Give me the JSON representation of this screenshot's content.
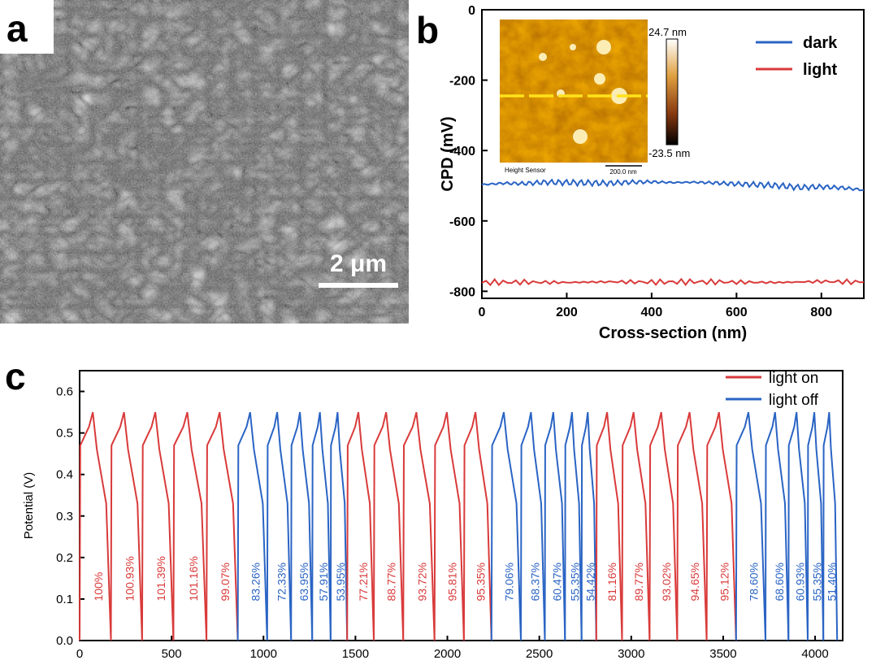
{
  "panels": {
    "a": {
      "letter": "a",
      "scale_bar_label": "2 μm"
    },
    "b": {
      "letter": "b"
    },
    "c": {
      "letter": "c"
    }
  },
  "chart_data": [
    {
      "panel": "b",
      "type": "line",
      "xlabel": "Cross-section (nm)",
      "ylabel": "CPD (mV)",
      "xlim": [
        0,
        900
      ],
      "ylim": [
        -820,
        0
      ],
      "xticks": [
        0,
        200,
        400,
        600,
        800
      ],
      "yticks": [
        0,
        -200,
        -400,
        -600,
        -800
      ],
      "legend_position": "top-right",
      "series": [
        {
          "name": "dark",
          "color": "#2a64c4",
          "x": [
            0,
            50,
            100,
            150,
            200,
            250,
            300,
            350,
            400,
            450,
            500,
            550,
            600,
            650,
            700,
            750,
            800,
            850,
            900
          ],
          "y": [
            -497,
            -493,
            -494,
            -490,
            -491,
            -492,
            -493,
            -490,
            -489,
            -491,
            -490,
            -492,
            -495,
            -497,
            -500,
            -505,
            -503,
            -506,
            -512
          ]
        },
        {
          "name": "light",
          "color": "#d93a3a",
          "x": [
            0,
            100,
            200,
            300,
            400,
            500,
            600,
            700,
            800,
            900
          ],
          "y": [
            -775,
            -774,
            -775,
            -773,
            -774,
            -773,
            -774,
            -775,
            -772,
            -774
          ]
        }
      ],
      "inset": {
        "colorbar_max_label": "24.7 nm",
        "colorbar_min_label": "-23.5 nm",
        "caption": "Height Sensor",
        "scale_label": "200.0 nm"
      }
    },
    {
      "panel": "c",
      "type": "line",
      "xlabel": "",
      "ylabel": "Potential (V)",
      "xlim": [
        0,
        4150
      ],
      "ylim": [
        0,
        0.65
      ],
      "xticks": [
        0,
        500,
        1000,
        1500,
        2000,
        2500,
        3000,
        3500,
        4000
      ],
      "yticks": [
        0.0,
        0.1,
        0.2,
        0.3,
        0.4,
        0.5,
        0.6
      ],
      "legend_position": "top-right",
      "legend": [
        {
          "name": "light on",
          "color": "#d93a3a"
        },
        {
          "name": "light off",
          "color": "#2a64c4"
        }
      ],
      "cycles": [
        {
          "start": 0,
          "end": 170,
          "label": "100%",
          "condition": "light on"
        },
        {
          "start": 170,
          "end": 340,
          "label": "100.93%",
          "condition": "light on"
        },
        {
          "start": 340,
          "end": 510,
          "label": "101.39%",
          "condition": "light on"
        },
        {
          "start": 510,
          "end": 690,
          "label": "101.16%",
          "condition": "light on"
        },
        {
          "start": 690,
          "end": 860,
          "label": "99.07%",
          "condition": "light on"
        },
        {
          "start": 860,
          "end": 1020,
          "label": "83.26%",
          "condition": "light off"
        },
        {
          "start": 1020,
          "end": 1150,
          "label": "72.33%",
          "condition": "light off"
        },
        {
          "start": 1150,
          "end": 1265,
          "label": "63.95%",
          "condition": "light off"
        },
        {
          "start": 1265,
          "end": 1365,
          "label": "57.91%",
          "condition": "light off"
        },
        {
          "start": 1365,
          "end": 1455,
          "label": "53.95%",
          "condition": "light off"
        },
        {
          "start": 1455,
          "end": 1600,
          "label": "77.21%",
          "condition": "light on"
        },
        {
          "start": 1600,
          "end": 1760,
          "label": "88.77%",
          "condition": "light on"
        },
        {
          "start": 1760,
          "end": 1930,
          "label": "93.72%",
          "condition": "light on"
        },
        {
          "start": 1930,
          "end": 2090,
          "label": "95.81%",
          "condition": "light on"
        },
        {
          "start": 2090,
          "end": 2240,
          "label": "95.35%",
          "condition": "light on"
        },
        {
          "start": 2240,
          "end": 2400,
          "label": "79.06%",
          "condition": "light off"
        },
        {
          "start": 2400,
          "end": 2530,
          "label": "68.37%",
          "condition": "light off"
        },
        {
          "start": 2530,
          "end": 2640,
          "label": "60.47%",
          "condition": "light off"
        },
        {
          "start": 2640,
          "end": 2730,
          "label": "55.35%",
          "condition": "light off"
        },
        {
          "start": 2730,
          "end": 2810,
          "label": "54.42%",
          "condition": "light off"
        },
        {
          "start": 2810,
          "end": 2950,
          "label": "81.16%",
          "condition": "light on"
        },
        {
          "start": 2950,
          "end": 3100,
          "label": "89.77%",
          "condition": "light on"
        },
        {
          "start": 3100,
          "end": 3250,
          "label": "93.02%",
          "condition": "light on"
        },
        {
          "start": 3250,
          "end": 3410,
          "label": "94.65%",
          "condition": "light on"
        },
        {
          "start": 3410,
          "end": 3570,
          "label": "95.12%",
          "condition": "light on"
        },
        {
          "start": 3570,
          "end": 3730,
          "label": "78.60%",
          "condition": "light off"
        },
        {
          "start": 3730,
          "end": 3855,
          "label": "68.60%",
          "condition": "light off"
        },
        {
          "start": 3855,
          "end": 3960,
          "label": "60.93%",
          "condition": "light off"
        },
        {
          "start": 3960,
          "end": 4045,
          "label": "55.35%",
          "condition": "light off"
        },
        {
          "start": 4045,
          "end": 4120,
          "label": "51.40%",
          "condition": "light off"
        }
      ]
    }
  ]
}
